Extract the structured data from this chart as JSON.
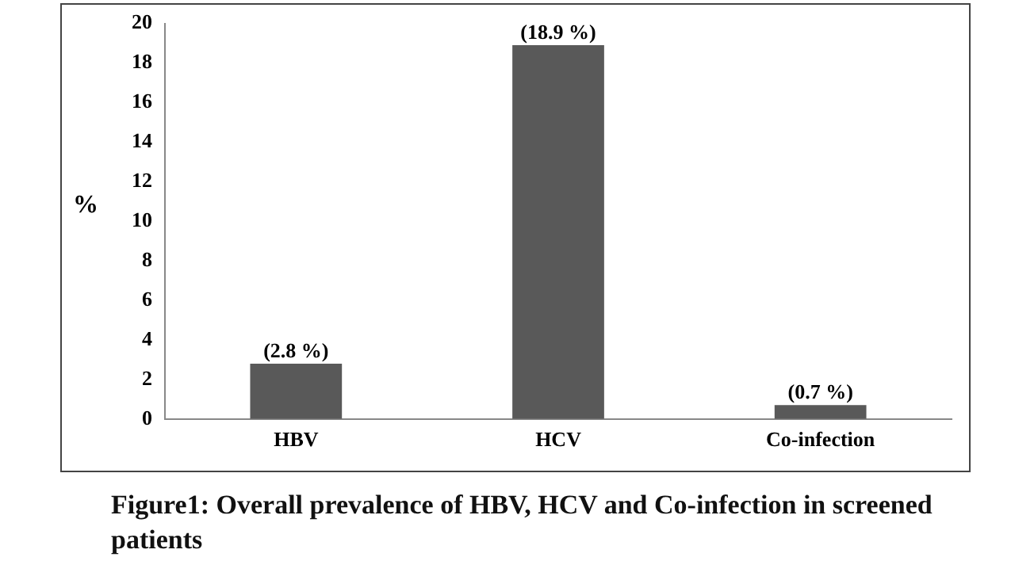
{
  "chart_data": {
    "type": "bar",
    "ylabel": "%",
    "categories": [
      "HBV",
      "HCV",
      "Co-infection"
    ],
    "values": [
      2.8,
      18.9,
      0.7
    ],
    "color": "#595959",
    "value_labels": [
      "(2.8 %)",
      "(18.9 %)",
      "(0.7 %)"
    ],
    "ylim": [
      0,
      20
    ],
    "yticks": [
      0,
      2,
      4,
      6,
      8,
      10,
      12,
      14,
      16,
      18,
      20
    ],
    "grid": false,
    "legend": false,
    "annotations": [
      "Figure1: Overall prevalence of HBV, HCV and Co-infection in screened patients"
    ]
  }
}
